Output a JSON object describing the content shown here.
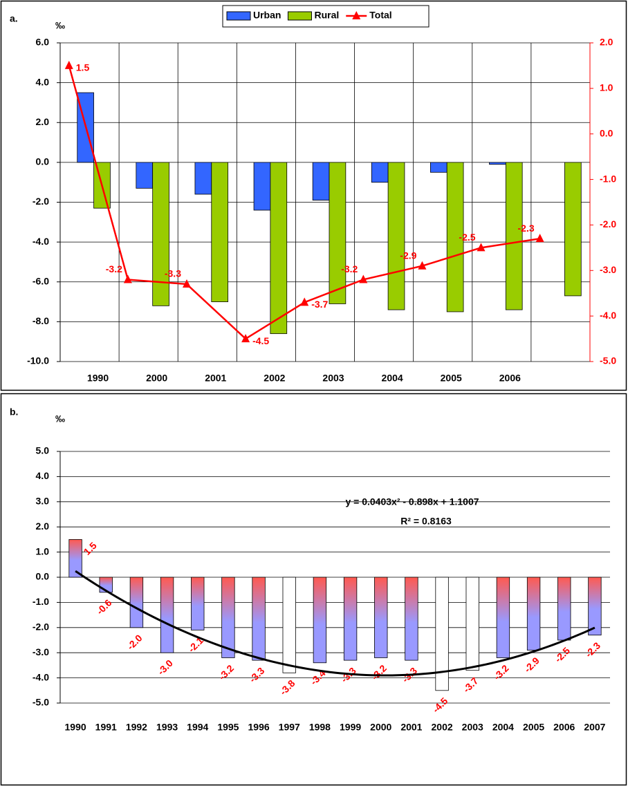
{
  "chart_data": [
    {
      "type": "bar",
      "panel_label": "a.",
      "unit": "‰",
      "categories": [
        "1990",
        "2000",
        "2001",
        "2002",
        "2003",
        "2004",
        "2005",
        "2006",
        null
      ],
      "series": [
        {
          "name": "Urban",
          "color": "#3366ff",
          "values": [
            3.5,
            -1.3,
            -1.6,
            -2.4,
            -1.9,
            -1.0,
            -0.5,
            -0.1,
            null
          ]
        },
        {
          "name": "Rural",
          "color": "#99cc00",
          "values": [
            -2.3,
            -7.2,
            -7.0,
            -8.6,
            -7.1,
            -7.4,
            -7.5,
            -7.4,
            -6.7
          ]
        },
        {
          "name": "Total",
          "type": "line",
          "axis": "y2",
          "color": "#ff0000",
          "values": [
            1.5,
            -3.2,
            -3.3,
            -4.5,
            -3.7,
            -3.2,
            -2.9,
            -2.5,
            -2.3
          ]
        }
      ],
      "ylim": [
        -10,
        6
      ],
      "yticks": [
        {
          "value": -10,
          "label": "-10.0"
        },
        {
          "value": -8,
          "label": "-8.0"
        },
        {
          "value": -6,
          "label": "-6.0"
        },
        {
          "value": -4,
          "label": "-4.0"
        },
        {
          "value": -2,
          "label": "-2.0"
        },
        {
          "value": 0,
          "label": "0.0"
        },
        {
          "value": 2,
          "label": "2.0"
        },
        {
          "value": 4,
          "label": "4.0"
        },
        {
          "value": 6,
          "label": "6.0"
        }
      ],
      "y2lim": [
        -5,
        2
      ],
      "y2ticks": [
        {
          "value": -5,
          "label": "-5.0"
        },
        {
          "value": -4,
          "label": "-4.0"
        },
        {
          "value": -3,
          "label": "-3.0"
        },
        {
          "value": -2,
          "label": "-2.0"
        },
        {
          "value": -1,
          "label": "-1.0"
        },
        {
          "value": 0,
          "label": "0.0"
        },
        {
          "value": 1,
          "label": "1.0"
        },
        {
          "value": 2,
          "label": "2.0"
        }
      ],
      "grid": true,
      "vertical_grid": true,
      "legend": "top"
    },
    {
      "type": "bar",
      "panel_label": "b.",
      "unit": "‰",
      "categories": [
        "1990",
        "1991",
        "1992",
        "1993",
        "1994",
        "1995",
        "1996",
        "1997",
        "1998",
        "1999",
        "2000",
        "2001",
        "2002",
        "2003",
        "2004",
        "2005",
        "2006",
        "2007"
      ],
      "values": [
        1.5,
        -0.6,
        -2.0,
        -3.0,
        -2.1,
        -3.2,
        -3.3,
        -3.8,
        -3.4,
        -3.3,
        -3.2,
        -3.3,
        -4.5,
        -3.7,
        -3.2,
        -2.9,
        -2.5,
        -2.3
      ],
      "value_labels": [
        "1.5",
        "-0.6",
        "-2.0",
        "-3.0",
        "-2.1",
        "-3.2",
        "-3.3",
        "-3.8",
        "-3.4",
        "-3.3",
        "-3.2",
        "-3.3",
        "-4.5",
        "-3.7",
        "-3.2",
        "-2.9",
        "-2.5",
        "-2.3"
      ],
      "colors": [
        "#9999ff",
        "#9999ff",
        "#9999ff",
        "#9999ff",
        "#9999ff",
        "#9999ff",
        "#9999ff",
        "#ffffff",
        "#9999ff",
        "#9999ff",
        "#9999ff",
        "#9999ff",
        "#ffffff",
        "#ffffff",
        "#9999ff",
        "#9999ff",
        "#9999ff",
        "#9999ff"
      ],
      "gradient_color": "#ff5a50",
      "label_color": "#ff0000",
      "ylim": [
        -5,
        5
      ],
      "yticks": [
        {
          "value": -5,
          "label": "-5.0"
        },
        {
          "value": -4,
          "label": "-4.0"
        },
        {
          "value": -3,
          "label": "-3.0"
        },
        {
          "value": -2,
          "label": "-2.0"
        },
        {
          "value": -1,
          "label": "-1.0"
        },
        {
          "value": 0,
          "label": "0.0"
        },
        {
          "value": 1,
          "label": "1.0"
        },
        {
          "value": 2,
          "label": "2.0"
        },
        {
          "value": 3,
          "label": "3.0"
        },
        {
          "value": 4,
          "label": "4.0"
        },
        {
          "value": 5,
          "label": "5.0"
        }
      ],
      "grid": true,
      "trendline": {
        "type": "polynomial",
        "coefficients": [
          0.0403,
          -0.898,
          1.1007
        ],
        "equation": "y = 0.0403x² - 0.898x + 1.1007",
        "r_squared": "R² = 0.8163",
        "color": "#000000"
      }
    }
  ]
}
